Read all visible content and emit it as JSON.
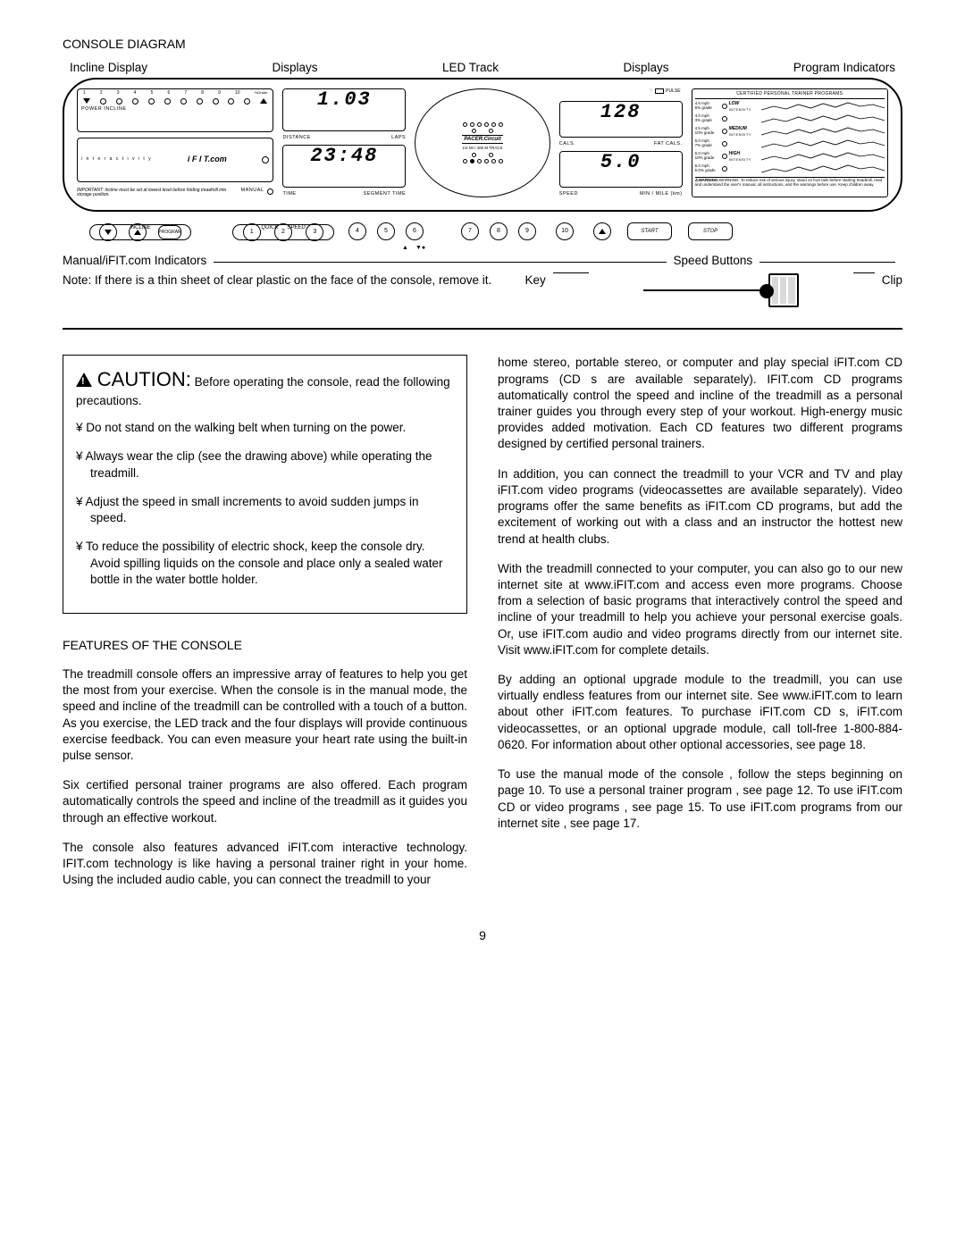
{
  "section_title": "CONSOLE DIAGRAM",
  "labels_top": {
    "incline": "Incline Display",
    "displays1": "Displays",
    "led_track": "LED Track",
    "displays2": "Displays",
    "program_ind": "Program Indicators"
  },
  "incline": {
    "numbers": [
      "1",
      "2",
      "3",
      "4",
      "5",
      "6",
      "7",
      "8",
      "9",
      "10",
      "%Grade"
    ],
    "power_label": "POWER INCLINE",
    "ifit_label": "i F I T.com",
    "manual_label": "MANUAL",
    "important": "IMPORTANT: Incline must be set at lowest level before folding treadmill into storage position."
  },
  "disp_left": {
    "val1": "1.03",
    "sub1a": "DISTANCE",
    "sub1b": "LAPS",
    "val2": "23:48",
    "sub2a": "TIME",
    "sub2b": "SEGMENT TIME"
  },
  "track": {
    "brand": "PACER.Circuit",
    "sub": "1/4 MI  /  400 M  TRACK"
  },
  "disp_right": {
    "pulse": "PULSE",
    "val1": "128",
    "sub1a": "CALS.",
    "sub1b": "FAT CALS.",
    "val2": "5.0",
    "sub2a": "SPEED",
    "sub2b": "MIN / MILE (km)"
  },
  "programs": {
    "title": "CERTIFIED PERSONAL TRAINER PROGRAMS",
    "rows": [
      {
        "l1": "4.5 mph",
        "l2": "5% grade",
        "name": "LOW",
        "sub": "INTENSITY"
      },
      {
        "l1": "4.0 mph",
        "l2": "3% grade",
        "name": "",
        "sub": ""
      },
      {
        "l1": "4.5 mph",
        "l2": "10% grade",
        "name": "MEDIUM",
        "sub": "INTENSITY"
      },
      {
        "l1": "5.0 mph",
        "l2": "7% grade",
        "name": "",
        "sub": ""
      },
      {
        "l1": "6.0 mph",
        "l2": "10% grade",
        "name": "HIGH",
        "sub": "INTENSITY"
      },
      {
        "l1": "6.0 mph",
        "l2": "6.0% grade",
        "name": "",
        "sub": ""
      }
    ],
    "warning": "WARNING: To reduce risk of serious injury, stand on foot rails before starting treadmill, read and understand the user's manual, all instructions, and the warnings before use. Keep children away."
  },
  "buttons": {
    "incline_label": "INCLINE",
    "program": "PROGRAM",
    "quick": "QUICK",
    "speed": "SPEED",
    "nums": [
      "1",
      "2",
      "3",
      "4",
      "5",
      "6",
      "7",
      "8",
      "9",
      "10"
    ],
    "start": "START",
    "stop": "STOP"
  },
  "below": {
    "manual": "Manual/iFIT.com Indicators",
    "speed_btns": "Speed Buttons",
    "note": "Note: If there is a thin sheet of clear plastic on the face of the console, remove it.",
    "key": "Key",
    "clip": "Clip"
  },
  "caution": {
    "title": "CAUTION:",
    "lead": "Before operating the console, read the following precautions.",
    "items": [
      "Do not stand on the walking belt when turning on the power.",
      "Always wear the clip (see the drawing above) while operating the treadmill.",
      "Adjust the speed in small increments to avoid sudden jumps in speed.",
      "To reduce the possibility of electric shock, keep the console dry. Avoid spilling liquids on the console and place only a sealed water bottle in the water bottle holder."
    ]
  },
  "features_title": "FEATURES OF THE CONSOLE",
  "left_paras": [
    "The treadmill console offers an impressive array of features to help you get the most from your exercise. When the console is in the manual mode, the speed and incline of the treadmill can be controlled with a touch of a button. As you exercise, the LED track and the four displays will provide continuous exercise feedback. You can even measure your heart rate using the built-in pulse sensor.",
    "Six certified personal trainer programs are also offered. Each program automatically controls the speed and incline of the treadmill as it guides you through an effective workout.",
    "The console also features advanced iFIT.com interactive technology. IFIT.com technology is like having a personal trainer right in your home. Using the included audio cable, you can connect the treadmill to your"
  ],
  "right_paras": [
    "home stereo, portable stereo, or computer and play special iFIT.com CD programs (CD s are available separately). IFIT.com CD programs automatically control the speed and incline of the treadmill as a personal trainer guides you through every step of your workout. High-energy music provides added motivation. Each CD features two different programs designed by certified personal trainers.",
    "In addition, you can connect the treadmill to your VCR and TV and play iFIT.com video programs (videocassettes are available separately). Video programs offer the same benefits as iFIT.com CD programs, but add the excitement of working out with a class and an instructor the hottest new trend at health clubs.",
    "With the treadmill connected to your computer, you can also go to our new internet site at www.iFIT.com and access even more programs. Choose from a selection of basic programs that interactively control the speed and incline of your treadmill to help you achieve your personal exercise goals. Or, use iFIT.com audio and video programs directly from our internet site. Visit www.iFIT.com for complete details.",
    "By adding an optional upgrade module to the treadmill, you can use virtually endless features from our internet site. See www.iFIT.com to learn about other iFIT.com features. To purchase iFIT.com CD s, iFIT.com videocassettes, or an optional upgrade module, call toll-free 1-800-884-0620. For information about other optional accessories, see page 18.",
    "To use the manual mode of the console   , follow the steps beginning on page 10. To use a personal trainer program , see page 12. To use iFIT.com CD or video programs , see page 15. To use iFIT.com programs from our internet site   , see page 17."
  ],
  "page_number": "9"
}
